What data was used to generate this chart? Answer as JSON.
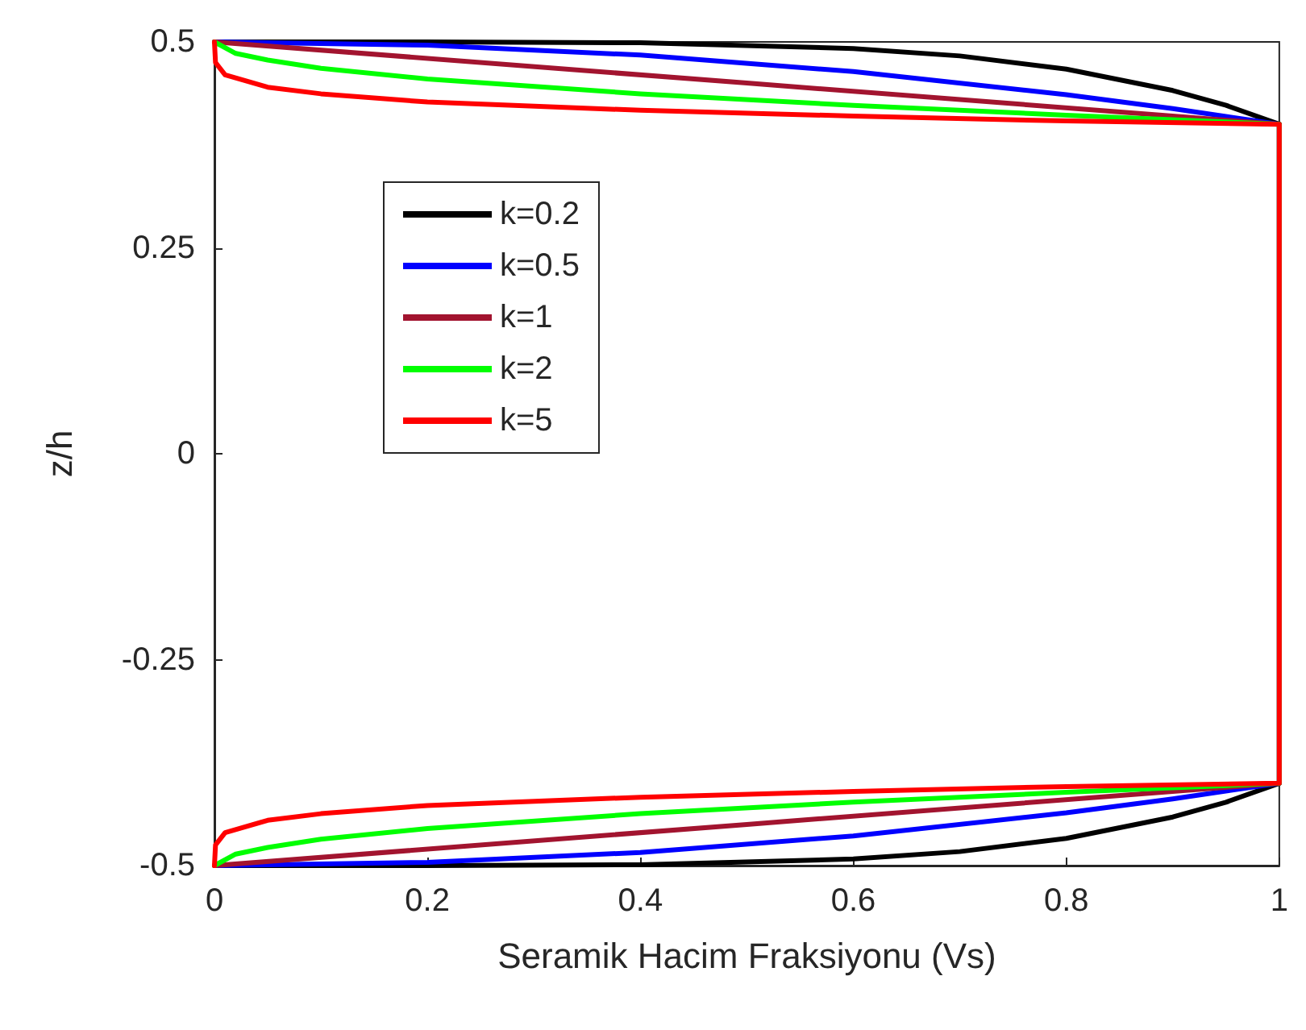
{
  "chart_data": {
    "type": "line",
    "xlabel": "Seramik Hacim Fraksiyonu (Vs)",
    "ylabel": "z/h",
    "xlim": [
      0,
      1
    ],
    "xticks": [
      0,
      0.2,
      0.4,
      0.6,
      0.8,
      1
    ],
    "ylim": [
      -0.5,
      0.5
    ],
    "yticks": [
      -0.5,
      -0.25,
      0,
      0.25,
      0.5
    ],
    "grid": false,
    "legend": "top left",
    "marker": "none",
    "line_style": "solid",
    "series": [
      {
        "name": "k=0.2",
        "color": "#000000",
        "x": [
          0,
          0.2,
          0.4,
          0.6,
          0.7,
          0.8,
          0.9,
          0.95,
          1,
          1,
          0.95,
          0.9,
          0.8,
          0.7,
          0.6,
          0.4,
          0.2,
          0
        ],
        "values": [
          0.5,
          0.5,
          0.499,
          0.492,
          0.483,
          0.467,
          0.441,
          0.423,
          0.4,
          -0.4,
          -0.423,
          -0.441,
          -0.467,
          -0.483,
          -0.492,
          -0.499,
          -0.5,
          -0.5
        ]
      },
      {
        "name": "k=0.5",
        "color": "#0000ff",
        "x": [
          0,
          0.2,
          0.4,
          0.6,
          0.8,
          0.9,
          1,
          1,
          0.9,
          0.8,
          0.6,
          0.4,
          0.2,
          0
        ],
        "values": [
          0.5,
          0.496,
          0.484,
          0.464,
          0.436,
          0.419,
          0.4,
          -0.4,
          -0.419,
          -0.436,
          -0.464,
          -0.484,
          -0.496,
          -0.5
        ]
      },
      {
        "name": "k=1",
        "color": "#a2142f",
        "x": [
          0,
          0.5,
          1,
          1,
          0.5,
          0
        ],
        "values": [
          0.5,
          0.45,
          0.4,
          -0.4,
          -0.45,
          -0.5
        ]
      },
      {
        "name": "k=2",
        "color": "#00ff00",
        "x": [
          0,
          0.02,
          0.05,
          0.1,
          0.2,
          0.4,
          0.6,
          0.8,
          1,
          1,
          0.8,
          0.6,
          0.4,
          0.2,
          0.1,
          0.05,
          0.02,
          0
        ],
        "values": [
          0.5,
          0.486,
          0.478,
          0.468,
          0.455,
          0.437,
          0.423,
          0.411,
          0.4,
          -0.4,
          -0.411,
          -0.423,
          -0.437,
          -0.455,
          -0.468,
          -0.478,
          -0.486,
          -0.5
        ]
      },
      {
        "name": "k=5",
        "color": "#ff0000",
        "x": [
          0,
          0.001,
          0.01,
          0.05,
          0.1,
          0.2,
          0.4,
          0.6,
          0.8,
          1,
          1,
          0.8,
          0.6,
          0.4,
          0.2,
          0.1,
          0.05,
          0.01,
          0.001,
          0
        ],
        "values": [
          0.5,
          0.475,
          0.46,
          0.445,
          0.437,
          0.427,
          0.417,
          0.41,
          0.404,
          0.4,
          -0.4,
          -0.404,
          -0.41,
          -0.417,
          -0.427,
          -0.437,
          -0.445,
          -0.46,
          -0.475,
          -0.5
        ]
      }
    ]
  }
}
